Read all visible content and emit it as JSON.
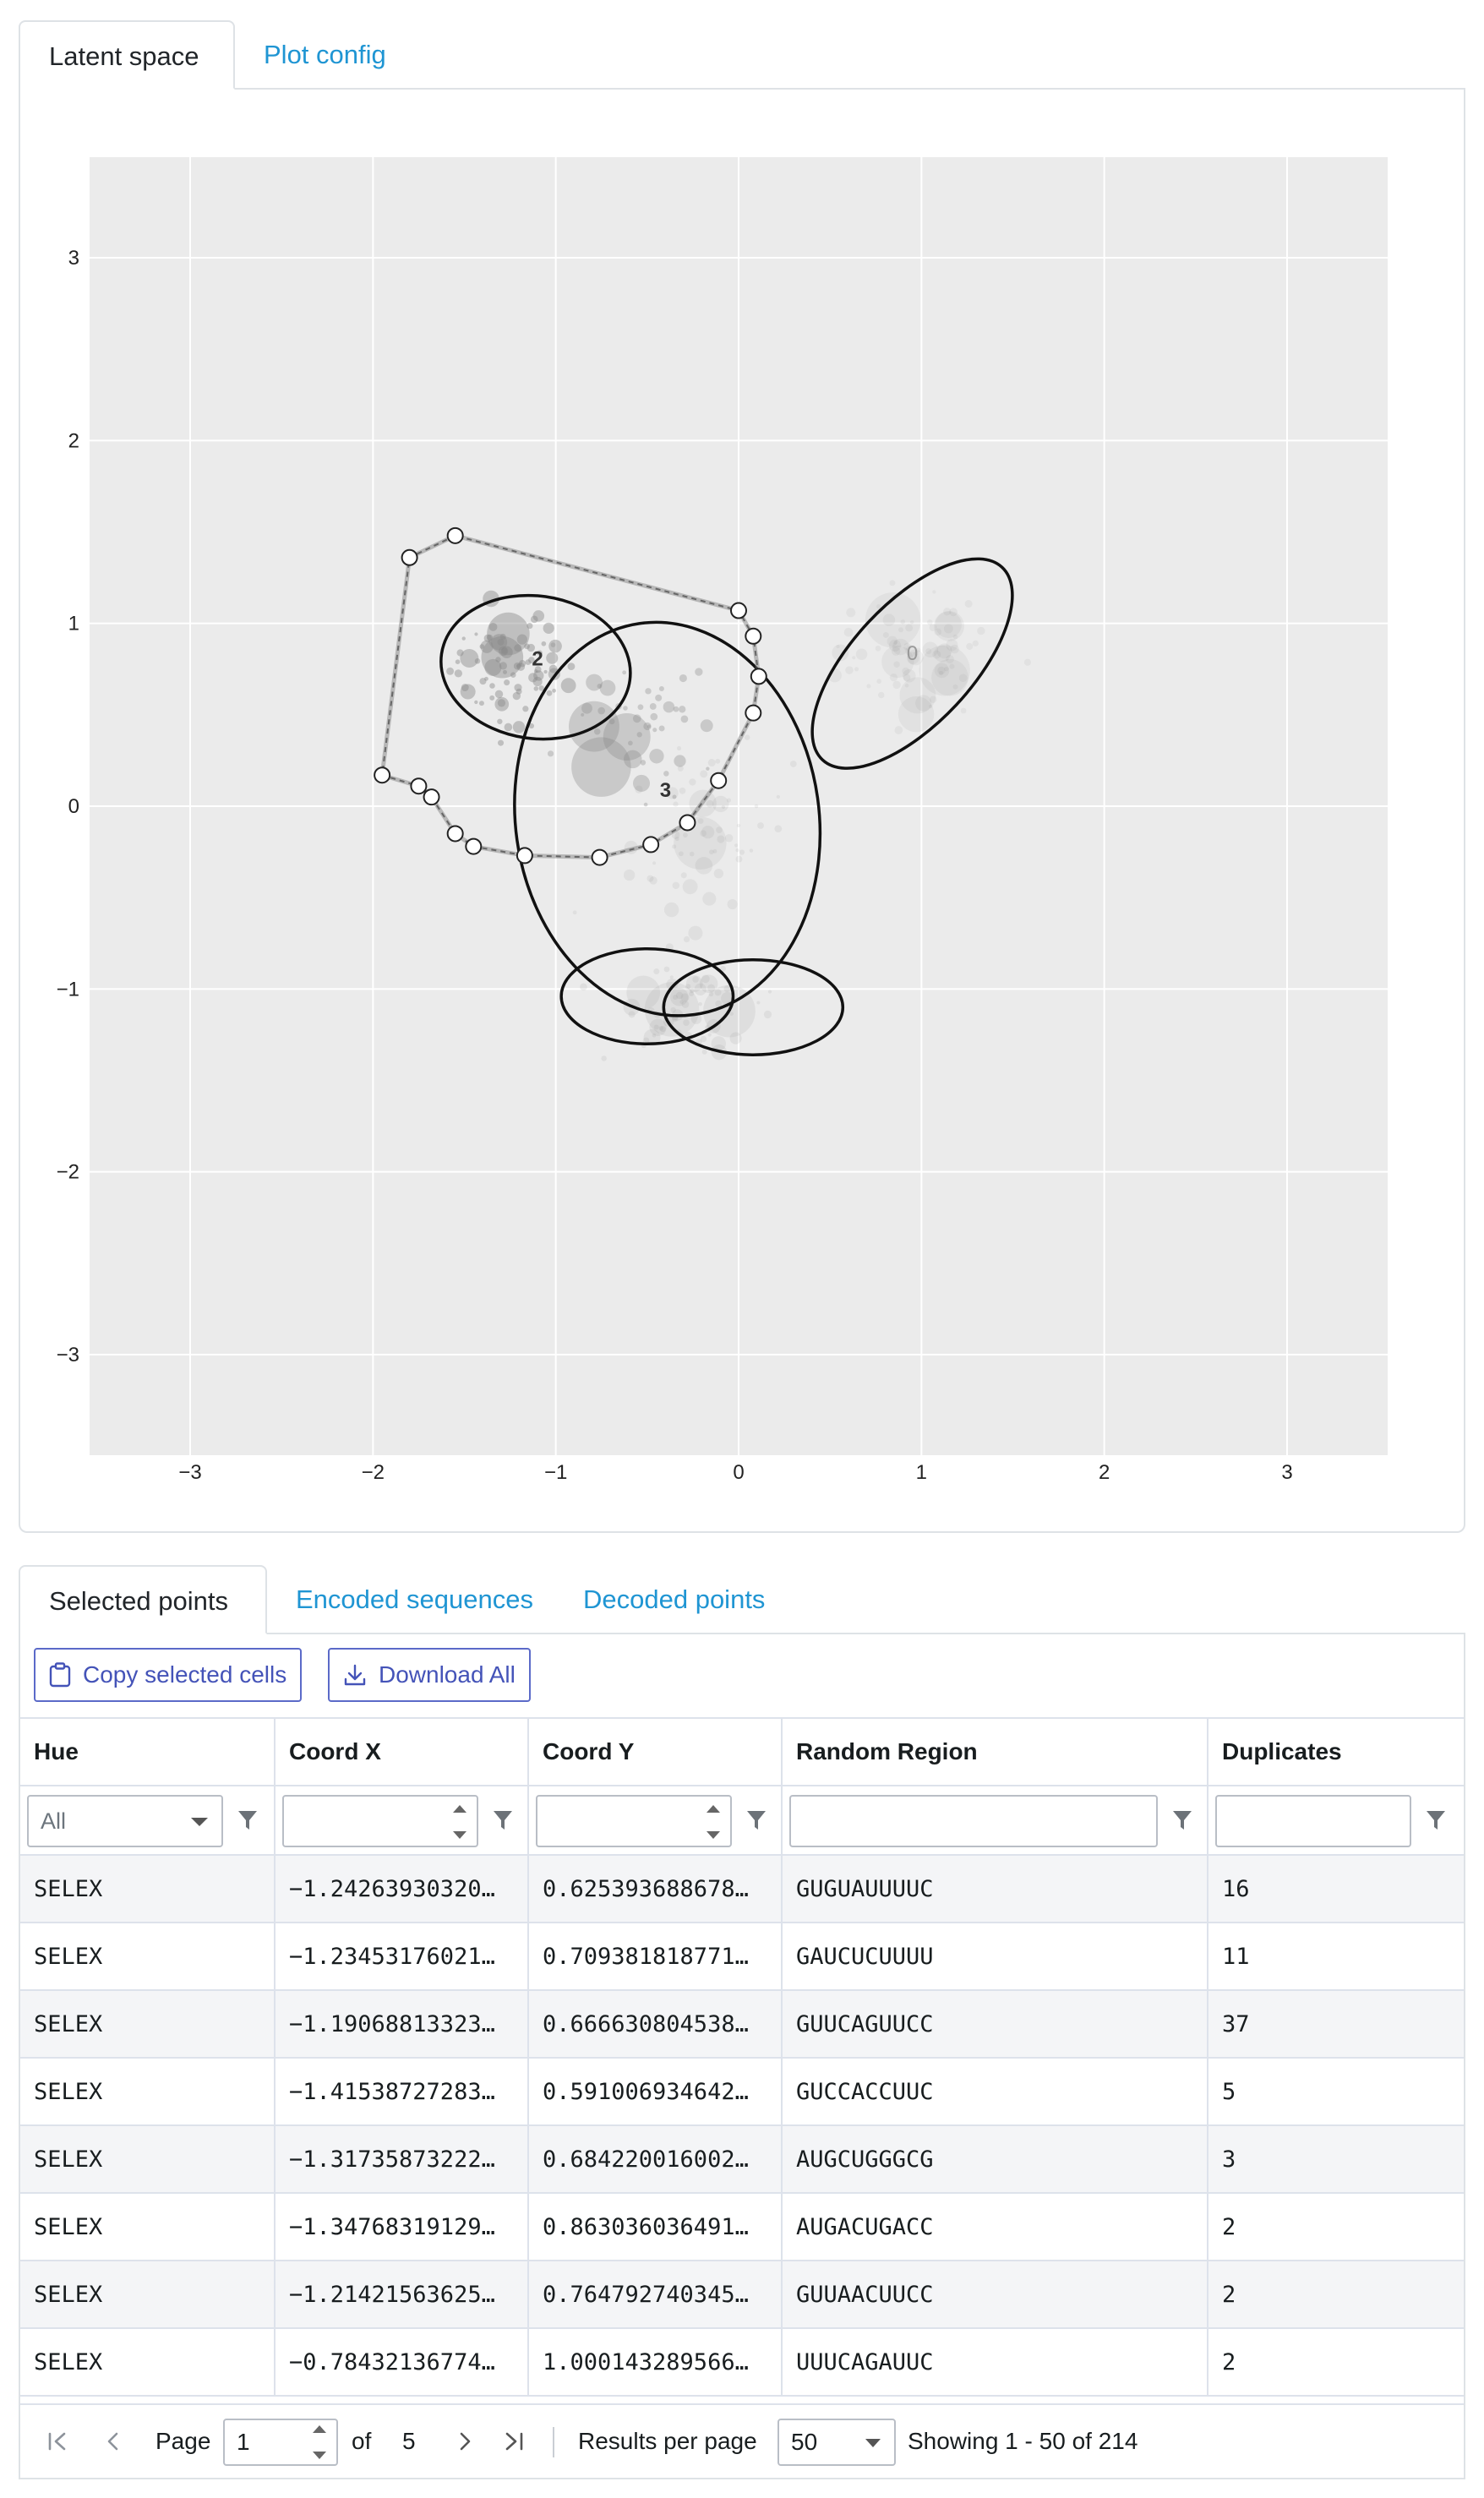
{
  "top_tabs": [
    {
      "label": "Latent space",
      "active": true
    },
    {
      "label": "Plot config",
      "active": false
    }
  ],
  "chart_data": {
    "type": "scatter",
    "title": "",
    "xlabel": "",
    "ylabel": "",
    "xlim": [
      -3.55,
      3.55
    ],
    "ylim": [
      -3.55,
      3.55
    ],
    "xticks": [
      -3,
      -2,
      -1,
      0,
      1,
      2,
      3
    ],
    "yticks": [
      -3,
      -2,
      -1,
      0,
      1,
      2,
      3
    ],
    "tick_labels": [
      "−3",
      "−2",
      "−1",
      "0",
      "1",
      "2",
      "3"
    ],
    "grid": true,
    "background": "#ebebeb",
    "cluster_labels": [
      {
        "text": "2",
        "x": -1.1,
        "y": 0.77
      },
      {
        "text": "3",
        "x": -0.4,
        "y": 0.05
      },
      {
        "text": "0",
        "x": 0.95,
        "y": 0.8
      }
    ],
    "ellipses": [
      {
        "cx": -1.11,
        "cy": 0.76,
        "rx": 0.52,
        "ry": 0.39,
        "angle_deg": 8
      },
      {
        "cx": -0.39,
        "cy": -0.07,
        "rx": 0.83,
        "ry": 1.08,
        "angle_deg": -8
      },
      {
        "cx": 0.95,
        "cy": 0.78,
        "rx": 0.72,
        "ry": 0.33,
        "angle_deg": -47
      },
      {
        "cx": -0.5,
        "cy": -1.04,
        "rx": 0.47,
        "ry": 0.26,
        "angle_deg": 0
      },
      {
        "cx": 0.08,
        "cy": -1.1,
        "rx": 0.49,
        "ry": 0.26,
        "angle_deg": 0
      }
    ],
    "lasso_polygon": [
      [
        -1.55,
        1.48
      ],
      [
        -1.8,
        1.36
      ],
      [
        -1.95,
        0.17
      ],
      [
        -1.75,
        0.11
      ],
      [
        -1.68,
        0.05
      ],
      [
        -1.55,
        -0.15
      ],
      [
        -1.45,
        -0.22
      ],
      [
        -1.17,
        -0.27
      ],
      [
        -0.76,
        -0.28
      ],
      [
        -0.48,
        -0.21
      ],
      [
        -0.28,
        -0.09
      ],
      [
        -0.11,
        0.14
      ],
      [
        0.08,
        0.51
      ],
      [
        0.11,
        0.71
      ],
      [
        0.08,
        0.93
      ],
      [
        0.0,
        1.07
      ]
    ],
    "scatter_clusters": [
      {
        "cx": -1.25,
        "cy": 0.75,
        "sx": 0.3,
        "sy": 0.28,
        "n": 80,
        "opacity": 0.45
      },
      {
        "cx": -0.55,
        "cy": 0.45,
        "sx": 0.4,
        "sy": 0.35,
        "n": 45,
        "opacity": 0.35
      },
      {
        "cx": -0.15,
        "cy": -0.2,
        "sx": 0.4,
        "sy": 0.45,
        "n": 60,
        "opacity": 0.12
      },
      {
        "cx": 0.95,
        "cy": 0.85,
        "sx": 0.35,
        "sy": 0.3,
        "n": 80,
        "opacity": 0.1
      },
      {
        "cx": -0.3,
        "cy": -1.1,
        "sx": 0.35,
        "sy": 0.2,
        "n": 70,
        "opacity": 0.13
      }
    ]
  },
  "bottom_tabs": [
    {
      "label": "Selected points",
      "active": true
    },
    {
      "label": "Encoded sequences",
      "active": false
    },
    {
      "label": "Decoded points",
      "active": false
    }
  ],
  "toolbar": {
    "copy_label": "Copy selected cells",
    "download_label": "Download All"
  },
  "table": {
    "columns": [
      "Hue",
      "Coord X",
      "Coord Y",
      "Random Region",
      "Duplicates"
    ],
    "hue_filter_value": "All",
    "rows": [
      [
        "SELEX",
        "−1.24263930320…",
        "0.625393688678…",
        "GUGUAUUUUC",
        "16"
      ],
      [
        "SELEX",
        "−1.23453176021…",
        "0.709381818771…",
        "GAUCUCUUUU",
        "11"
      ],
      [
        "SELEX",
        "−1.19068813323…",
        "0.666630804538…",
        "GUUCAGUUCC",
        "37"
      ],
      [
        "SELEX",
        "−1.41538727283…",
        "0.591006934642…",
        "GUCCACCUUC",
        "5"
      ],
      [
        "SELEX",
        "−1.31735873222…",
        "0.684220016002…",
        "AUGCUGGGCG",
        "3"
      ],
      [
        "SELEX",
        "−1.34768319129…",
        "0.863036036491…",
        "AUGACUGACC",
        "2"
      ],
      [
        "SELEX",
        "−1.21421563625…",
        "0.764792740345…",
        "GUUAACUUCC",
        "2"
      ],
      [
        "SELEX",
        "−0.78432136774…",
        "1.000143289566…",
        "UUUCAGAUUC",
        "2"
      ]
    ]
  },
  "pagination": {
    "page_label": "Page",
    "page_value": "1",
    "of_label": "of",
    "total_pages": "5",
    "rpp_label": "Results per page",
    "rpp_value": "50",
    "summary": "Showing 1 - 50 of 214"
  }
}
